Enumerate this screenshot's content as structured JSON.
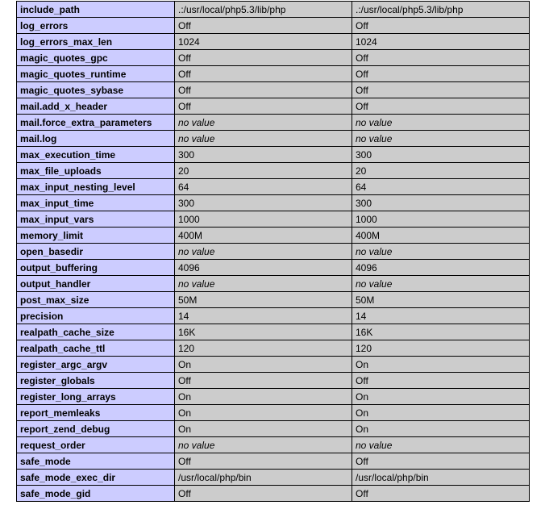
{
  "table": {
    "rows": [
      {
        "directive": "include_path",
        "local": ".:/usr/local/php5.3/lib/php",
        "master": ".:/usr/local/php5.3/lib/php"
      },
      {
        "directive": "log_errors",
        "local": "Off",
        "master": "Off"
      },
      {
        "directive": "log_errors_max_len",
        "local": "1024",
        "master": "1024"
      },
      {
        "directive": "magic_quotes_gpc",
        "local": "Off",
        "master": "Off"
      },
      {
        "directive": "magic_quotes_runtime",
        "local": "Off",
        "master": "Off"
      },
      {
        "directive": "magic_quotes_sybase",
        "local": "Off",
        "master": "Off"
      },
      {
        "directive": "mail.add_x_header",
        "local": "Off",
        "master": "Off"
      },
      {
        "directive": "mail.force_extra_parameters",
        "local": "no value",
        "master": "no value",
        "italic": true
      },
      {
        "directive": "mail.log",
        "local": "no value",
        "master": "no value",
        "italic": true
      },
      {
        "directive": "max_execution_time",
        "local": "300",
        "master": "300"
      },
      {
        "directive": "max_file_uploads",
        "local": "20",
        "master": "20"
      },
      {
        "directive": "max_input_nesting_level",
        "local": "64",
        "master": "64"
      },
      {
        "directive": "max_input_time",
        "local": "300",
        "master": "300"
      },
      {
        "directive": "max_input_vars",
        "local": "1000",
        "master": "1000"
      },
      {
        "directive": "memory_limit",
        "local": "400M",
        "master": "400M"
      },
      {
        "directive": "open_basedir",
        "local": "no value",
        "master": "no value",
        "italic": true
      },
      {
        "directive": "output_buffering",
        "local": "4096",
        "master": "4096"
      },
      {
        "directive": "output_handler",
        "local": "no value",
        "master": "no value",
        "italic": true
      },
      {
        "directive": "post_max_size",
        "local": "50M",
        "master": "50M"
      },
      {
        "directive": "precision",
        "local": "14",
        "master": "14"
      },
      {
        "directive": "realpath_cache_size",
        "local": "16K",
        "master": "16K"
      },
      {
        "directive": "realpath_cache_ttl",
        "local": "120",
        "master": "120"
      },
      {
        "directive": "register_argc_argv",
        "local": "On",
        "master": "On"
      },
      {
        "directive": "register_globals",
        "local": "Off",
        "master": "Off"
      },
      {
        "directive": "register_long_arrays",
        "local": "On",
        "master": "On"
      },
      {
        "directive": "report_memleaks",
        "local": "On",
        "master": "On"
      },
      {
        "directive": "report_zend_debug",
        "local": "On",
        "master": "On"
      },
      {
        "directive": "request_order",
        "local": "no value",
        "master": "no value",
        "italic": true
      },
      {
        "directive": "safe_mode",
        "local": "Off",
        "master": "Off"
      },
      {
        "directive": "safe_mode_exec_dir",
        "local": "/usr/local/php/bin",
        "master": "/usr/local/php/bin"
      },
      {
        "directive": "safe_mode_gid",
        "local": "Off",
        "master": "Off"
      }
    ]
  }
}
